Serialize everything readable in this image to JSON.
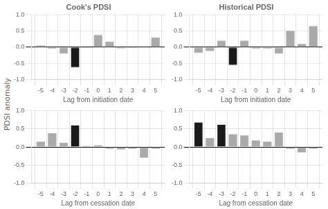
{
  "chart_data": [
    {
      "type": "bar",
      "title": "Cook's PDSI",
      "xlabel": "Lag from initiation date",
      "ylabel": "PDSI anomaly",
      "x": [
        -5,
        -4,
        -3,
        -2,
        -1,
        0,
        1,
        2,
        3,
        4,
        5
      ],
      "values": [
        0.05,
        -0.05,
        -0.2,
        -0.62,
        -0.03,
        0.38,
        0.17,
        -0.04,
        -0.02,
        0.0,
        0.3
      ],
      "colors": [
        "#aaaaaa",
        "#aaaaaa",
        "#aaaaaa",
        "#1a1a1a",
        "#aaaaaa",
        "#aaaaaa",
        "#aaaaaa",
        "#aaaaaa",
        "#aaaaaa",
        "#aaaaaa",
        "#aaaaaa"
      ],
      "xlim": [
        -5.8,
        5.8
      ],
      "xticks": [
        -5,
        -4,
        -3,
        -2,
        -1,
        0,
        1,
        2,
        3,
        4,
        5
      ],
      "ylim": [
        -1.0,
        1.0
      ],
      "yticks": [
        {
          "value": -1.0,
          "label": "-1.0"
        },
        -0.5,
        {
          "value": 0.0,
          "label": "0.0"
        },
        0.5,
        {
          "value": 1.0,
          "label": "1.0"
        }
      ],
      "grid": true
    },
    {
      "type": "bar",
      "title": "Historical PDSI",
      "xlabel": "Lag from initiation date",
      "x": [
        -5,
        -4,
        -3,
        -2,
        -1,
        0,
        1,
        2,
        3,
        4,
        5
      ],
      "values": [
        -0.18,
        -0.12,
        0.2,
        -0.55,
        0.2,
        -0.05,
        -0.05,
        -0.2,
        0.5,
        0.1,
        0.65
      ],
      "colors": [
        "#aaaaaa",
        "#aaaaaa",
        "#aaaaaa",
        "#1a1a1a",
        "#aaaaaa",
        "#aaaaaa",
        "#aaaaaa",
        "#aaaaaa",
        "#aaaaaa",
        "#aaaaaa",
        "#aaaaaa"
      ],
      "xlim": [
        -5.8,
        5.8
      ],
      "xticks": [
        -5,
        -4,
        -3,
        -2,
        -1,
        0,
        1,
        2,
        3,
        4,
        5
      ],
      "ylim": [
        -1.0,
        1.0
      ],
      "yticks": [
        {
          "value": -1.0,
          "label": "-1.0"
        },
        -0.5,
        {
          "value": 0.0,
          "label": "0.0"
        },
        0.5,
        {
          "value": 1.0,
          "label": "1.0"
        }
      ],
      "grid": true
    },
    {
      "type": "bar",
      "xlabel": "Lag from cessation date",
      "x": [
        -5,
        -4,
        -3,
        -2,
        -1,
        0,
        1,
        2,
        3,
        4,
        5
      ],
      "values": [
        0.15,
        0.38,
        0.12,
        0.6,
        0.03,
        0.05,
        -0.05,
        -0.07,
        -0.05,
        -0.3,
        -0.05
      ],
      "colors": [
        "#aaaaaa",
        "#aaaaaa",
        "#aaaaaa",
        "#1a1a1a",
        "#aaaaaa",
        "#aaaaaa",
        "#aaaaaa",
        "#aaaaaa",
        "#aaaaaa",
        "#aaaaaa",
        "#aaaaaa"
      ],
      "xlim": [
        -5.8,
        5.8
      ],
      "xticks": [
        -5,
        -4,
        -3,
        -2,
        -1,
        0,
        1,
        2,
        3,
        4,
        5
      ],
      "ylim": [
        -1.0,
        1.0
      ],
      "yticks": [
        {
          "value": -1.0,
          "label": "-1.0"
        },
        -0.5,
        {
          "value": 0.0,
          "label": "0.0"
        },
        0.5,
        {
          "value": 1.0,
          "label": "1.0"
        }
      ],
      "grid": true
    },
    {
      "type": "bar",
      "xlabel": "Lag from cessation date",
      "x": [
        -5,
        -4,
        -3,
        -2,
        -1,
        0,
        1,
        2,
        3,
        4,
        5
      ],
      "values": [
        0.68,
        0.25,
        0.62,
        0.35,
        0.32,
        0.18,
        0.15,
        0.4,
        -0.05,
        -0.15,
        -0.05
      ],
      "colors": [
        "#1a1a1a",
        "#aaaaaa",
        "#1a1a1a",
        "#aaaaaa",
        "#aaaaaa",
        "#aaaaaa",
        "#aaaaaa",
        "#aaaaaa",
        "#aaaaaa",
        "#aaaaaa",
        "#aaaaaa"
      ],
      "xlim": [
        -5.8,
        5.8
      ],
      "xticks": [
        -5,
        -4,
        -3,
        -2,
        -1,
        0,
        1,
        2,
        3,
        4,
        5
      ],
      "ylim": [
        -1.0,
        1.0
      ],
      "yticks": [
        {
          "value": -1.0,
          "label": "-1.0"
        },
        -0.5,
        {
          "value": 0.0,
          "label": "0.0"
        },
        0.5,
        {
          "value": 1.0,
          "label": "1.0"
        }
      ],
      "grid": true
    }
  ]
}
